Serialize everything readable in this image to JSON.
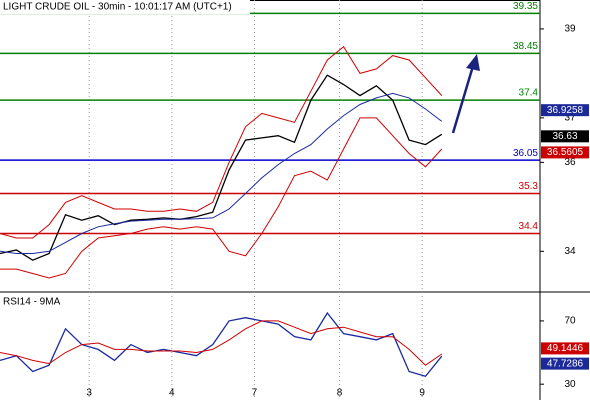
{
  "chart_data": [
    {
      "type": "line",
      "title": "LIGHT CRUDE OIL - 30min - 10:01:17 AM (UTC+1)",
      "x": [
        0,
        2,
        4,
        6,
        8,
        10,
        12,
        14,
        16,
        18,
        20,
        22,
        24,
        26,
        28,
        30,
        32,
        34,
        36,
        38,
        40,
        42,
        44,
        46,
        48,
        50,
        52,
        54
      ],
      "xlim": [
        0,
        66
      ],
      "ylim": [
        33.13,
        39.65
      ],
      "yticks": [
        39,
        37,
        36,
        34
      ],
      "series": [
        {
          "name": "Price",
          "color": "#000000",
          "values": [
            33.95,
            34.03,
            33.8,
            33.95,
            34.82,
            34.7,
            34.8,
            34.6,
            34.7,
            34.72,
            34.75,
            34.72,
            34.78,
            34.88,
            35.83,
            36.5,
            36.55,
            36.6,
            36.45,
            37.4,
            37.96,
            37.75,
            37.5,
            37.72,
            37.4,
            36.5,
            36.4,
            36.63
          ]
        },
        {
          "name": "MA",
          "color": "#1a2aa0",
          "values": [
            34.0,
            33.95,
            33.95,
            34.0,
            34.2,
            34.4,
            34.55,
            34.62,
            34.68,
            34.7,
            34.72,
            34.72,
            34.73,
            34.75,
            34.95,
            35.3,
            35.65,
            35.95,
            36.2,
            36.4,
            36.75,
            37.05,
            37.3,
            37.45,
            37.55,
            37.45,
            37.2,
            36.92
          ]
        },
        {
          "name": "Upper",
          "color": "#d00000",
          "values": [
            34.4,
            34.3,
            34.3,
            34.6,
            35.1,
            35.25,
            35.1,
            34.95,
            34.95,
            34.9,
            34.9,
            34.95,
            34.9,
            35.1,
            36.0,
            36.8,
            37.1,
            37.0,
            36.9,
            37.6,
            38.3,
            38.6,
            38.0,
            38.1,
            38.4,
            38.3,
            37.9,
            37.5
          ]
        },
        {
          "name": "Lower",
          "color": "#d00000",
          "values": [
            33.6,
            33.6,
            33.5,
            33.4,
            33.5,
            34.0,
            34.3,
            34.35,
            34.4,
            34.5,
            34.55,
            34.5,
            34.55,
            34.5,
            34.0,
            33.9,
            34.4,
            35.0,
            35.7,
            35.8,
            35.6,
            36.3,
            37.0,
            37.0,
            36.6,
            36.2,
            35.9,
            36.3
          ]
        }
      ],
      "levels": [
        {
          "value": 39.35,
          "color": "#008000"
        },
        {
          "value": 38.45,
          "color": "#008000"
        },
        {
          "value": 37.4,
          "color": "#008000"
        },
        {
          "value": 36.05,
          "color": "#0000cc"
        },
        {
          "value": 35.3,
          "color": "#cc0000"
        },
        {
          "value": 34.4,
          "color": "#cc0000"
        }
      ],
      "last_values": [
        {
          "value": 36.9258,
          "color": "#1c2a99"
        },
        {
          "value": 36.63,
          "color": "#000000"
        },
        {
          "value": 36.5605,
          "color": "#cc0000"
        }
      ]
    },
    {
      "type": "line",
      "title": "RSI14 - 9MA",
      "x": [
        0,
        2,
        4,
        6,
        8,
        10,
        12,
        14,
        16,
        18,
        20,
        22,
        24,
        26,
        28,
        30,
        32,
        34,
        36,
        38,
        40,
        42,
        44,
        46,
        48,
        50,
        52,
        54
      ],
      "xlim": [
        0,
        66
      ],
      "ylim": [
        20,
        87
      ],
      "yticks": [
        70,
        30
      ],
      "xticks": [
        {
          "value": 10.9,
          "label": "3"
        },
        {
          "value": 21,
          "label": "4"
        },
        {
          "value": 31.1,
          "label": "7"
        },
        {
          "value": 41.5,
          "label": "8"
        },
        {
          "value": 51.6,
          "label": "9"
        }
      ],
      "series": [
        {
          "name": "RSI14",
          "color": "#1a2aa0",
          "values": [
            45,
            48,
            38,
            42,
            65,
            55,
            52,
            45,
            55,
            50,
            52,
            50,
            48,
            55,
            70,
            72,
            70,
            68,
            60,
            58,
            75,
            62,
            60,
            58,
            62,
            38,
            35,
            47.7
          ]
        },
        {
          "name": "9MA",
          "color": "#d00000",
          "values": [
            50,
            48,
            45,
            43,
            50,
            55,
            56,
            52,
            52,
            51,
            51,
            51,
            50,
            52,
            58,
            65,
            70,
            70,
            66,
            62,
            65,
            66,
            63,
            60,
            60,
            52,
            42,
            49.1
          ]
        }
      ],
      "last_values": [
        {
          "value": 49.1446,
          "color": "#cc0000"
        },
        {
          "value": 47.7286,
          "color": "#1c2a99"
        }
      ]
    }
  ]
}
